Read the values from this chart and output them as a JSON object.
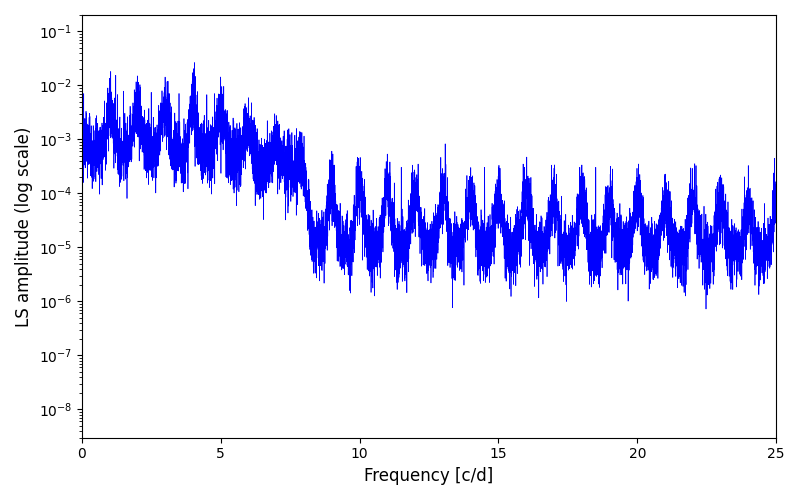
{
  "title": "",
  "xlabel": "Frequency [c/d]",
  "ylabel": "LS amplitude (log scale)",
  "line_color": "#0000ff",
  "line_width": 0.5,
  "xlim": [
    0,
    25
  ],
  "ylim": [
    3e-09,
    0.2
  ],
  "freq_max": 25.0,
  "n_points": 8000,
  "seed": 12345,
  "background_color": "#ffffff",
  "figsize": [
    8.0,
    5.0
  ],
  "dpi": 100
}
